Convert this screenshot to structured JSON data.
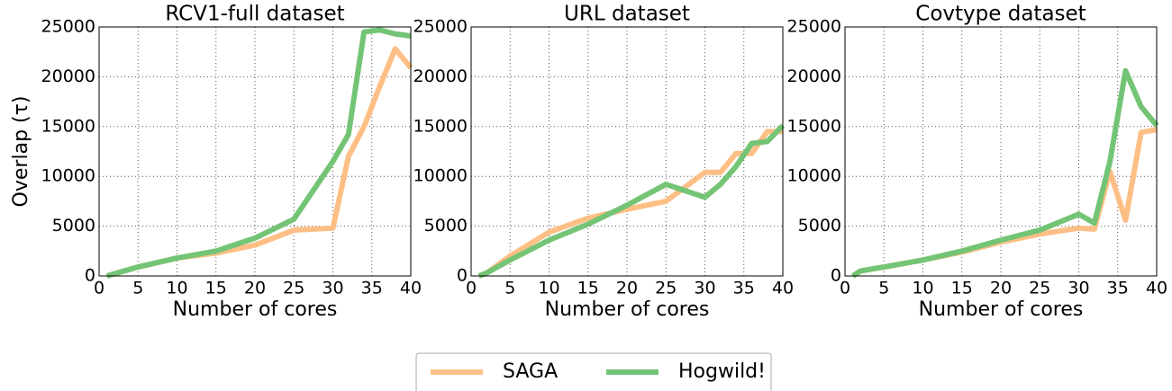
{
  "chart_data": [
    {
      "type": "line",
      "title": "RCV1-full dataset",
      "xlabel": "Number of cores",
      "ylabel": "Overlap (τ)",
      "x": [
        1,
        5,
        10,
        15,
        20,
        25,
        30,
        32,
        34,
        36,
        38,
        40
      ],
      "series": [
        {
          "values": [
            0,
            900,
            1800,
            2300,
            3100,
            4600,
            4800,
            12000,
            15000,
            19000,
            22800,
            20900
          ]
        },
        {
          "values": [
            0,
            900,
            1800,
            2500,
            3800,
            5700,
            11500,
            14200,
            24500,
            24700,
            24300,
            24100
          ]
        }
      ],
      "xlim": [
        0,
        40
      ],
      "xticks": [
        0,
        5,
        10,
        15,
        20,
        25,
        30,
        35,
        40
      ],
      "ylim": [
        0,
        25000
      ],
      "yticks": [
        0,
        5000,
        10000,
        15000,
        20000,
        25000
      ],
      "grid": true
    },
    {
      "type": "line",
      "title": "URL dataset",
      "xlabel": "Number of cores",
      "x": [
        1,
        2,
        5,
        10,
        15,
        20,
        25,
        30,
        32,
        34,
        36,
        38,
        40
      ],
      "series": [
        {
          "values": [
            0,
            300,
            2000,
            4400,
            5800,
            6700,
            7500,
            10400,
            10400,
            12300,
            12300,
            14500,
            14500
          ]
        },
        {
          "values": [
            0,
            300,
            1600,
            3600,
            5200,
            7100,
            9200,
            7900,
            9200,
            11000,
            13300,
            13500,
            15100
          ]
        }
      ],
      "xlim": [
        0,
        40
      ],
      "xticks": [
        0,
        5,
        10,
        15,
        20,
        25,
        30,
        35,
        40
      ],
      "ylim": [
        0,
        25000
      ],
      "yticks": [
        0,
        5000,
        10000,
        15000,
        20000,
        25000
      ],
      "grid": true
    },
    {
      "type": "line",
      "title": "Covtype dataset",
      "xlabel": "Number of cores",
      "x": [
        1,
        2,
        5,
        10,
        15,
        20,
        25,
        30,
        32,
        34,
        36,
        38,
        40
      ],
      "series": [
        {
          "values": [
            0,
            500,
            900,
            1600,
            2400,
            3400,
            4200,
            4800,
            4700,
            10500,
            5600,
            14400,
            14700
          ]
        },
        {
          "values": [
            0,
            500,
            900,
            1600,
            2500,
            3600,
            4600,
            6200,
            5300,
            11500,
            20600,
            17000,
            15100
          ]
        }
      ],
      "xlim": [
        0,
        40
      ],
      "xticks": [
        0,
        5,
        10,
        15,
        20,
        25,
        30,
        35,
        40
      ],
      "ylim": [
        0,
        25000
      ],
      "yticks": [
        0,
        5000,
        10000,
        15000,
        20000,
        25000
      ],
      "grid": true
    }
  ],
  "legend": [
    {
      "name": "SAGA",
      "color": "#fdbf85"
    },
    {
      "name": "Hogwild!",
      "color": "#74c476"
    }
  ]
}
